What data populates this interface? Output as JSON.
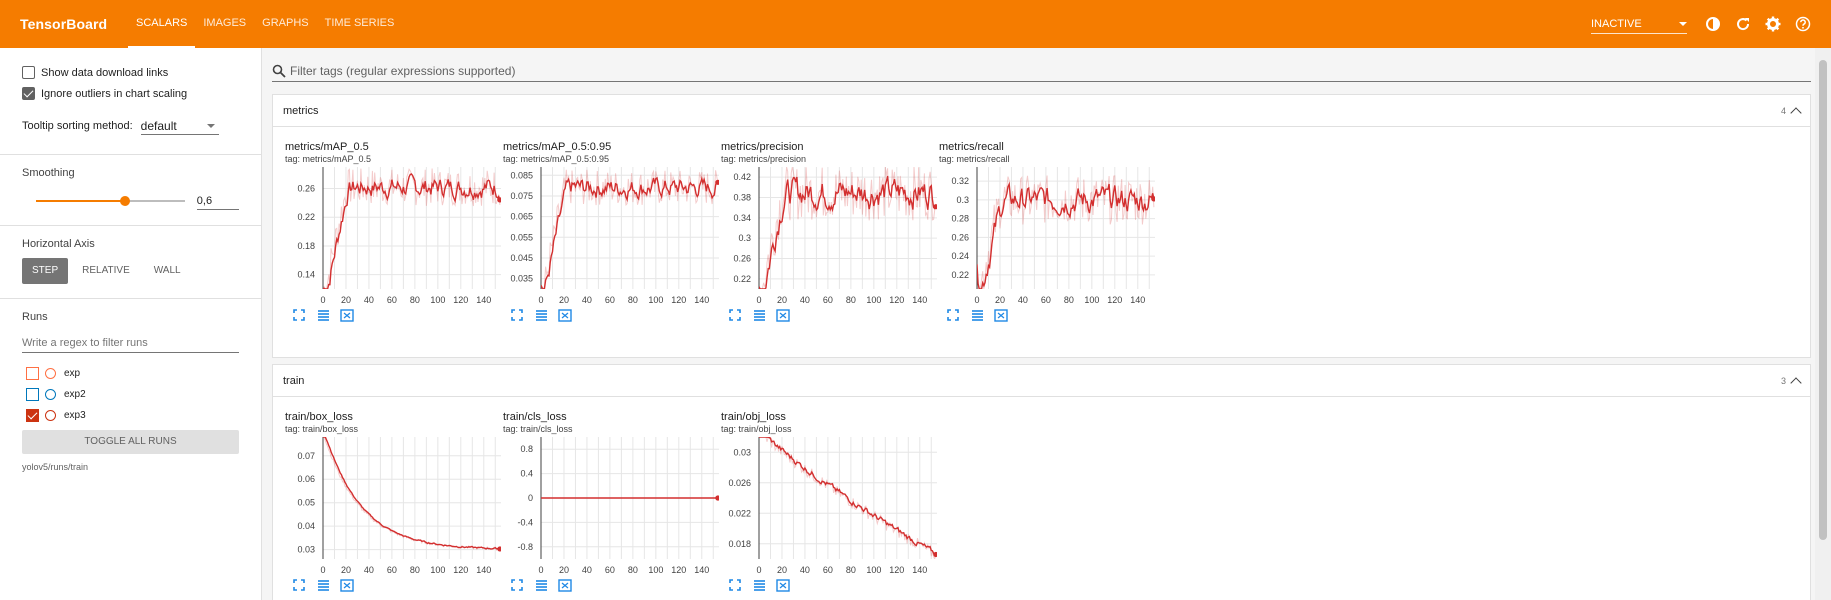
{
  "header": {
    "brand": "TensorBoard",
    "tabs": [
      {
        "label": "SCALARS",
        "active": true
      },
      {
        "label": "IMAGES",
        "active": false
      },
      {
        "label": "GRAPHS",
        "active": false
      },
      {
        "label": "TIME SERIES",
        "active": false
      }
    ],
    "status_select": "INACTIVE",
    "icons": [
      "brightness-icon",
      "refresh-icon",
      "settings-icon",
      "help-icon"
    ],
    "color": "#f57c00"
  },
  "sidebar": {
    "show_download_links": {
      "label": "Show data download links",
      "checked": false
    },
    "ignore_outliers": {
      "label": "Ignore outliers in chart scaling",
      "checked": true
    },
    "tooltip_sorting": {
      "label": "Tooltip sorting method:",
      "value": "default"
    },
    "smoothing": {
      "label": "Smoothing",
      "value": "0,6",
      "fraction": 0.6
    },
    "horizontal_axis": {
      "label": "Horizontal Axis",
      "options": [
        {
          "label": "STEP",
          "active": true
        },
        {
          "label": "RELATIVE",
          "active": false
        },
        {
          "label": "WALL",
          "active": false
        }
      ]
    },
    "runs": {
      "label": "Runs",
      "filter_placeholder": "Write a regex to filter runs",
      "items": [
        {
          "name": "exp",
          "color": "#ff7043",
          "checked": false
        },
        {
          "name": "exp2",
          "color": "#0077bb",
          "checked": false
        },
        {
          "name": "exp3",
          "color": "#cc3311",
          "checked": true
        }
      ],
      "toggle_label": "TOGGLE ALL RUNS",
      "path": "yolov5/runs/train"
    }
  },
  "main": {
    "filter_placeholder": "Filter tags (regular expressions supported)",
    "groups": [
      {
        "name": "metrics",
        "count": "4",
        "charts": [
          {
            "title": "metrics/mAP_0.5",
            "tag": "tag: metrics/mAP_0.5",
            "yticks": [
              "0.26",
              "0.22",
              "0.18",
              "0.14"
            ],
            "ymin": 0.12,
            "ymax": 0.29,
            "curve": "rise",
            "level": 0.262,
            "noise": 0.012,
            "start": 0.12,
            "end": 0.253
          },
          {
            "title": "metrics/mAP_0.5:0.95",
            "tag": "tag: metrics/mAP_0.5:0.95",
            "yticks": [
              "0.085",
              "0.075",
              "0.065",
              "0.055",
              "0.045",
              "0.035"
            ],
            "ymin": 0.03,
            "ymax": 0.089,
            "curve": "rise",
            "level": 0.079,
            "noise": 0.004,
            "start": 0.03,
            "end": 0.078
          },
          {
            "title": "metrics/precision",
            "tag": "tag: metrics/precision",
            "yticks": [
              "0.42",
              "0.38",
              "0.34",
              "0.3",
              "0.26",
              "0.22"
            ],
            "ymin": 0.2,
            "ymax": 0.44,
            "curve": "rise",
            "level": 0.39,
            "noise": 0.025,
            "start": 0.2,
            "end": 0.375
          },
          {
            "title": "metrics/recall",
            "tag": "tag: metrics/recall",
            "yticks": [
              "0.32",
              "0.3",
              "0.28",
              "0.26",
              "0.24",
              "0.22"
            ],
            "ymin": 0.205,
            "ymax": 0.335,
            "curve": "rise",
            "level": 0.3,
            "noise": 0.012,
            "start": 0.205,
            "end": 0.325
          }
        ]
      },
      {
        "name": "train",
        "count": "3",
        "charts": [
          {
            "title": "train/box_loss",
            "tag": "tag: train/box_loss",
            "yticks": [
              "0.07",
              "0.06",
              "0.05",
              "0.04",
              "0.03"
            ],
            "ymin": 0.026,
            "ymax": 0.078,
            "curve": "decay",
            "level": 0.03,
            "noise": 0.0004,
            "start": 0.08,
            "end": 0.03
          },
          {
            "title": "train/cls_loss",
            "tag": "tag: train/cls_loss",
            "yticks": [
              "0.8",
              "0.4",
              "0",
              "-0.4",
              "-0.8"
            ],
            "ymin": -1.0,
            "ymax": 1.0,
            "curve": "flat",
            "level": 0,
            "noise": 0,
            "start": 0,
            "end": 0
          },
          {
            "title": "train/obj_loss",
            "tag": "tag: train/obj_loss",
            "yticks": [
              "0.03",
              "0.026",
              "0.022",
              "0.018"
            ],
            "ymin": 0.016,
            "ymax": 0.032,
            "curve": "linear-decay",
            "level": 0.017,
            "noise": 0.0005,
            "start": 0.033,
            "end": 0.0165
          }
        ]
      }
    ],
    "xticks": [
      "0",
      "20",
      "40",
      "60",
      "80",
      "100",
      "120",
      "140"
    ],
    "series_color": "#d32f2f"
  }
}
